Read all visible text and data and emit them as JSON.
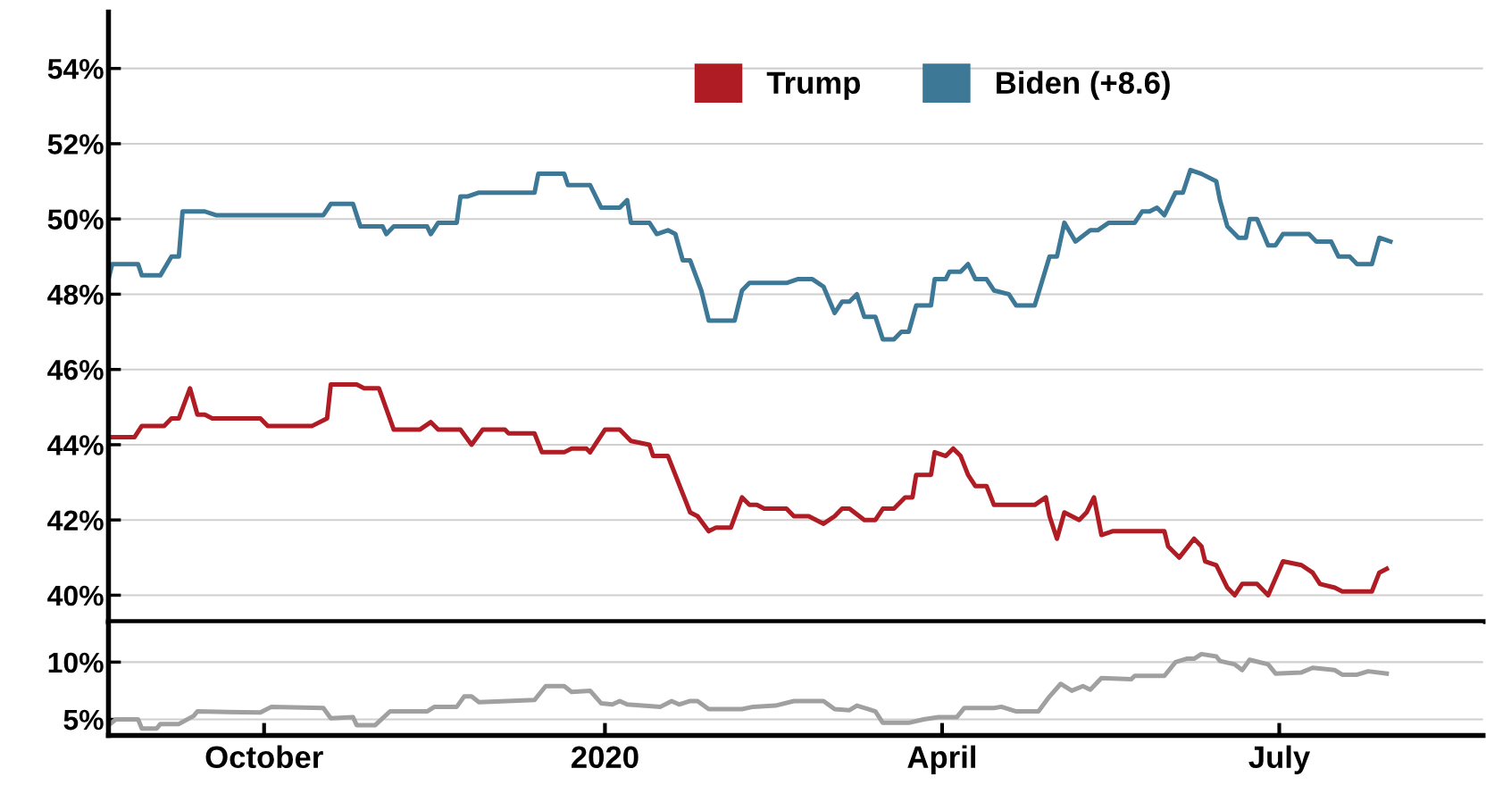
{
  "chart_data": [
    {
      "type": "line",
      "legend": "top",
      "grid": "y",
      "tick_labels": "y",
      "line_style": "solid",
      "marker": "none",
      "xlim": [
        "2019-08-20",
        "2020-08-25"
      ],
      "ylim": [
        39.3,
        55.5
      ],
      "yticks": [
        {
          "value": 40,
          "label": "40%"
        },
        {
          "value": 42,
          "label": "42%"
        },
        {
          "value": 44,
          "label": "44%"
        },
        {
          "value": 46,
          "label": "46%"
        },
        {
          "value": 48,
          "label": "48%"
        },
        {
          "value": 50,
          "label": "50%"
        },
        {
          "value": 52,
          "label": "52%"
        },
        {
          "value": 54,
          "label": "54%"
        }
      ],
      "series": [
        {
          "name": "Trump",
          "color": "#b01c24",
          "x": [
            "2019-08-20",
            "2019-08-27",
            "2019-08-29",
            "2019-09-04",
            "2019-09-06",
            "2019-09-08",
            "2019-09-11",
            "2019-09-13",
            "2019-09-15",
            "2019-09-17",
            "2019-09-30",
            "2019-10-02",
            "2019-10-14",
            "2019-10-18",
            "2019-10-19",
            "2019-10-26",
            "2019-10-28",
            "2019-11-01",
            "2019-11-05",
            "2019-11-12",
            "2019-11-15",
            "2019-11-17",
            "2019-11-23",
            "2019-11-26",
            "2019-11-29",
            "2019-12-05",
            "2019-12-06",
            "2019-12-13",
            "2019-12-15",
            "2019-12-21",
            "2019-12-23",
            "2019-12-27",
            "2019-12-28",
            "2020-01-01",
            "2020-01-05",
            "2020-01-08",
            "2020-01-13",
            "2020-01-14",
            "2020-01-18",
            "2020-01-24",
            "2020-01-26",
            "2020-01-29",
            "2020-01-31",
            "2020-02-04",
            "2020-02-07",
            "2020-02-09",
            "2020-02-11",
            "2020-02-13",
            "2020-02-19",
            "2020-02-21",
            "2020-02-25",
            "2020-02-29",
            "2020-03-03",
            "2020-03-05",
            "2020-03-07",
            "2020-03-11",
            "2020-03-14",
            "2020-03-16",
            "2020-03-19",
            "2020-03-22",
            "2020-03-24",
            "2020-03-25",
            "2020-03-29",
            "2020-03-30",
            "2020-04-02",
            "2020-04-04",
            "2020-04-06",
            "2020-04-08",
            "2020-04-10",
            "2020-04-13",
            "2020-04-15",
            "2020-04-26",
            "2020-04-29",
            "2020-04-30",
            "2020-05-02",
            "2020-05-04",
            "2020-05-08",
            "2020-05-10",
            "2020-05-12",
            "2020-05-14",
            "2020-05-17",
            "2020-05-31",
            "2020-06-01",
            "2020-06-04",
            "2020-06-08",
            "2020-06-10",
            "2020-06-11",
            "2020-06-14",
            "2020-06-17",
            "2020-06-19",
            "2020-06-21",
            "2020-06-25",
            "2020-06-28",
            "2020-07-02",
            "2020-07-07",
            "2020-07-10",
            "2020-07-12",
            "2020-07-16",
            "2020-07-18",
            "2020-07-23",
            "2020-07-26",
            "2020-07-28",
            "2020-07-30"
          ],
          "values": [
            44.2,
            44.2,
            44.5,
            44.5,
            44.7,
            44.7,
            45.5,
            44.8,
            44.8,
            44.7,
            44.7,
            44.5,
            44.5,
            44.7,
            45.6,
            45.6,
            45.5,
            45.5,
            44.4,
            44.4,
            44.6,
            44.4,
            44.4,
            44.0,
            44.4,
            44.4,
            44.3,
            44.3,
            43.8,
            43.8,
            43.9,
            43.9,
            43.8,
            44.4,
            44.4,
            44.1,
            44.0,
            43.7,
            43.7,
            42.2,
            42.1,
            41.7,
            41.8,
            41.8,
            42.6,
            42.4,
            42.4,
            42.3,
            42.3,
            42.1,
            42.1,
            41.9,
            42.1,
            42.3,
            42.3,
            42.0,
            42.0,
            42.3,
            42.3,
            42.6,
            42.6,
            43.2,
            43.2,
            43.8,
            43.7,
            43.9,
            43.7,
            43.2,
            42.9,
            42.9,
            42.4,
            42.4,
            42.6,
            42.1,
            41.5,
            42.2,
            42.0,
            42.2,
            42.6,
            41.6,
            41.7,
            41.7,
            41.3,
            41.0,
            41.5,
            41.3,
            40.9,
            40.8,
            40.2,
            40.0,
            40.3,
            40.3,
            40.0,
            40.9,
            40.8,
            40.6,
            40.3,
            40.2,
            40.1,
            40.1,
            40.1,
            40.6,
            40.7
          ]
        },
        {
          "name": "Biden (+8.6)",
          "color": "#3d7896",
          "x": [
            "2019-08-20",
            "2019-08-21",
            "2019-08-28",
            "2019-08-29",
            "2019-09-03",
            "2019-09-06",
            "2019-09-08",
            "2019-09-09",
            "2019-09-15",
            "2019-09-18",
            "2019-10-17",
            "2019-10-19",
            "2019-10-25",
            "2019-10-27",
            "2019-11-02",
            "2019-11-03",
            "2019-11-05",
            "2019-11-14",
            "2019-11-15",
            "2019-11-17",
            "2019-11-22",
            "2019-11-23",
            "2019-11-25",
            "2019-11-28",
            "2019-12-13",
            "2019-12-14",
            "2019-12-21",
            "2019-12-22",
            "2019-12-28",
            "2019-12-31",
            "2020-01-05",
            "2020-01-07",
            "2020-01-08",
            "2020-01-13",
            "2020-01-15",
            "2020-01-18",
            "2020-01-20",
            "2020-01-22",
            "2020-01-24",
            "2020-01-27",
            "2020-01-29",
            "2020-02-05",
            "2020-02-07",
            "2020-02-09",
            "2020-02-19",
            "2020-02-22",
            "2020-02-26",
            "2020-02-29",
            "2020-03-03",
            "2020-03-05",
            "2020-03-07",
            "2020-03-09",
            "2020-03-11",
            "2020-03-14",
            "2020-03-16",
            "2020-03-19",
            "2020-03-21",
            "2020-03-23",
            "2020-03-25",
            "2020-03-29",
            "2020-03-30",
            "2020-04-02",
            "2020-04-03",
            "2020-04-06",
            "2020-04-08",
            "2020-04-10",
            "2020-04-13",
            "2020-04-15",
            "2020-04-19",
            "2020-04-21",
            "2020-04-26",
            "2020-04-30",
            "2020-05-02",
            "2020-05-04",
            "2020-05-07",
            "2020-05-11",
            "2020-05-13",
            "2020-05-16",
            "2020-05-23",
            "2020-05-25",
            "2020-05-27",
            "2020-05-29",
            "2020-05-31",
            "2020-06-03",
            "2020-06-05",
            "2020-06-07",
            "2020-06-10",
            "2020-06-14",
            "2020-06-15",
            "2020-06-17",
            "2020-06-20",
            "2020-06-22",
            "2020-06-23",
            "2020-06-25",
            "2020-06-28",
            "2020-06-30",
            "2020-07-02",
            "2020-07-04",
            "2020-07-09",
            "2020-07-11",
            "2020-07-15",
            "2020-07-17",
            "2020-07-20",
            "2020-07-22",
            "2020-07-26",
            "2020-07-28",
            "2020-07-31"
          ],
          "values": [
            48.4,
            48.8,
            48.8,
            48.5,
            48.5,
            49.0,
            49.0,
            50.2,
            50.2,
            50.1,
            50.1,
            50.4,
            50.4,
            49.8,
            49.8,
            49.6,
            49.8,
            49.8,
            49.6,
            49.9,
            49.9,
            50.6,
            50.6,
            50.7,
            50.7,
            51.2,
            51.2,
            50.9,
            50.9,
            50.3,
            50.3,
            50.5,
            49.9,
            49.9,
            49.6,
            49.7,
            49.6,
            48.9,
            48.9,
            48.1,
            47.3,
            47.3,
            48.1,
            48.3,
            48.3,
            48.4,
            48.4,
            48.2,
            47.5,
            47.8,
            47.8,
            48.0,
            47.4,
            47.4,
            46.8,
            46.8,
            47.0,
            47.0,
            47.7,
            47.7,
            48.4,
            48.4,
            48.6,
            48.6,
            48.8,
            48.4,
            48.4,
            48.1,
            48.0,
            47.7,
            47.7,
            49.0,
            49.0,
            49.9,
            49.4,
            49.7,
            49.7,
            49.9,
            49.9,
            50.2,
            50.2,
            50.3,
            50.1,
            50.7,
            50.7,
            51.3,
            51.2,
            51.0,
            50.5,
            49.8,
            49.5,
            49.5,
            50.0,
            50.0,
            49.3,
            49.3,
            49.6,
            49.6,
            49.6,
            49.4,
            49.4,
            49.0,
            49.0,
            48.8,
            48.8,
            49.5,
            49.4
          ]
        }
      ]
    },
    {
      "type": "line",
      "grid": "y",
      "line_style": "solid",
      "marker": "none",
      "xlim": [
        "2019-08-20",
        "2020-08-25"
      ],
      "xticks": [
        {
          "value": "2019-10-01",
          "label": "October"
        },
        {
          "value": "2020-01-01",
          "label": "2020"
        },
        {
          "value": "2020-04-01",
          "label": "April"
        },
        {
          "value": "2020-07-01",
          "label": "July"
        }
      ],
      "ylim": [
        3.6,
        13.4
      ],
      "yticks": [
        {
          "value": 5,
          "label": "5%"
        },
        {
          "value": 10,
          "label": "10%"
        }
      ],
      "series": [
        {
          "color": "#a0a0a0",
          "x": [
            "2019-08-20",
            "2019-08-22",
            "2019-08-28",
            "2019-08-29",
            "2019-09-02",
            "2019-09-03",
            "2019-09-08",
            "2019-09-12",
            "2019-09-13",
            "2019-09-30",
            "2019-10-03",
            "2019-10-17",
            "2019-10-19",
            "2019-10-25",
            "2019-10-26",
            "2019-10-31",
            "2019-11-04",
            "2019-11-14",
            "2019-11-16",
            "2019-11-22",
            "2019-11-24",
            "2019-11-26",
            "2019-11-28",
            "2019-12-13",
            "2019-12-16",
            "2019-12-21",
            "2019-12-23",
            "2019-12-28",
            "2019-12-31",
            "2020-01-03",
            "2020-01-05",
            "2020-01-07",
            "2020-01-16",
            "2020-01-19",
            "2020-01-21",
            "2020-01-24",
            "2020-01-26",
            "2020-01-29",
            "2020-02-07",
            "2020-02-10",
            "2020-02-16",
            "2020-02-21",
            "2020-02-29",
            "2020-03-03",
            "2020-03-07",
            "2020-03-09",
            "2020-03-12",
            "2020-03-14",
            "2020-03-16",
            "2020-03-23",
            "2020-03-27",
            "2020-03-31",
            "2020-04-05",
            "2020-04-07",
            "2020-04-15",
            "2020-04-17",
            "2020-04-21",
            "2020-04-27",
            "2020-04-30",
            "2020-05-03",
            "2020-05-06",
            "2020-05-09",
            "2020-05-11",
            "2020-05-14",
            "2020-05-22",
            "2020-05-23",
            "2020-05-31",
            "2020-06-03",
            "2020-06-06",
            "2020-06-08",
            "2020-06-10",
            "2020-06-14",
            "2020-06-15",
            "2020-06-19",
            "2020-06-21",
            "2020-06-23",
            "2020-06-28",
            "2020-06-30",
            "2020-07-07",
            "2020-07-10",
            "2020-07-16",
            "2020-07-18",
            "2020-07-22",
            "2020-07-25",
            "2020-07-30"
          ],
          "values": [
            4.5,
            5.0,
            5.0,
            4.2,
            4.2,
            4.6,
            4.6,
            5.3,
            5.7,
            5.6,
            6.1,
            6.0,
            5.1,
            5.2,
            4.5,
            4.5,
            5.7,
            5.7,
            6.1,
            6.1,
            7.0,
            7.0,
            6.5,
            6.7,
            7.9,
            7.9,
            7.4,
            7.5,
            6.4,
            6.3,
            6.6,
            6.3,
            6.1,
            6.6,
            6.3,
            6.6,
            6.6,
            5.9,
            5.9,
            6.1,
            6.2,
            6.6,
            6.6,
            5.9,
            5.8,
            6.2,
            5.9,
            5.7,
            4.7,
            4.7,
            5.0,
            5.2,
            5.2,
            6.0,
            6.0,
            6.1,
            5.7,
            5.7,
            7.0,
            8.1,
            7.5,
            7.9,
            7.6,
            8.6,
            8.5,
            8.8,
            8.8,
            10.0,
            10.3,
            10.3,
            10.7,
            10.5,
            10.1,
            9.8,
            9.3,
            10.2,
            9.8,
            9.0,
            9.1,
            9.5,
            9.3,
            8.9,
            8.9,
            9.2,
            9.0
          ]
        }
      ]
    }
  ]
}
